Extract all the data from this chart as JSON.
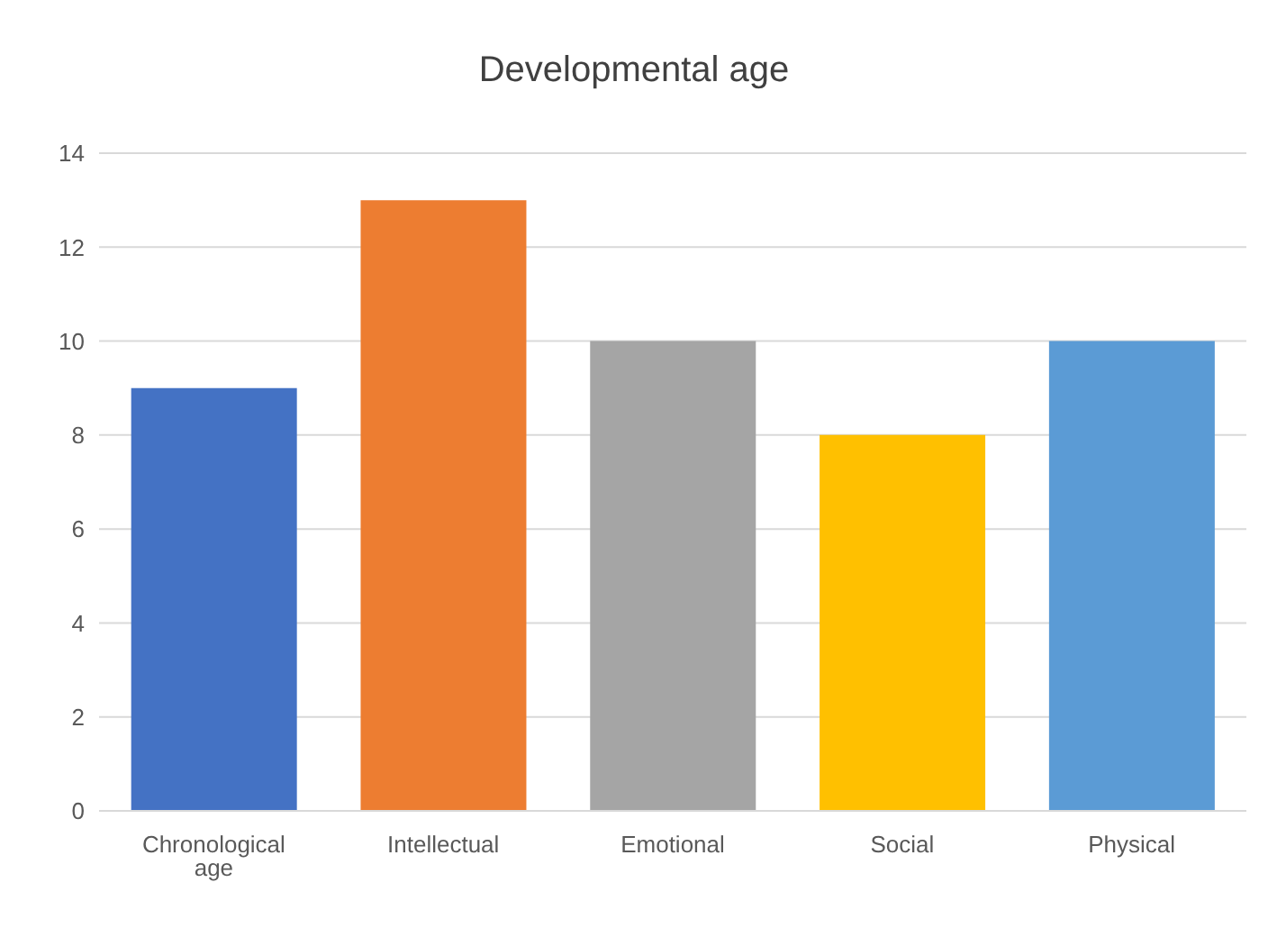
{
  "chart_data": {
    "type": "bar",
    "title": "Developmental age",
    "categories": [
      "Chronological age",
      "Intellectual",
      "Emotional",
      "Social",
      "Physical"
    ],
    "values": [
      9,
      13,
      10,
      8,
      10
    ],
    "colors": [
      "#4472c4",
      "#ed7d31",
      "#a5a5a5",
      "#ffc000",
      "#5b9bd5"
    ],
    "ylim": [
      0,
      14
    ],
    "yticks": [
      0,
      2,
      4,
      6,
      8,
      10,
      12,
      14
    ],
    "grid": "y",
    "legend": false
  }
}
